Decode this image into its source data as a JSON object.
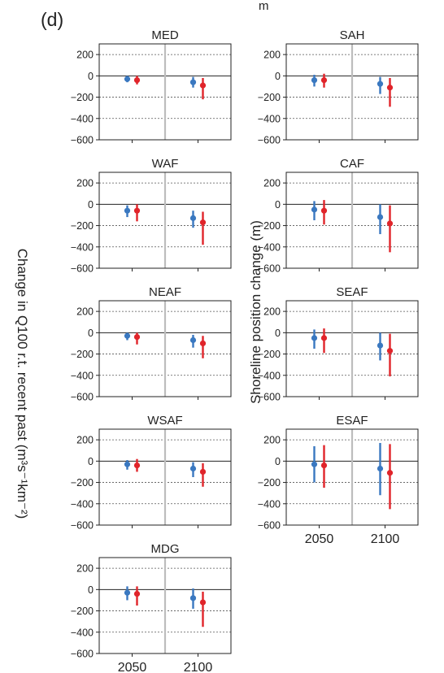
{
  "panel_label": "(d)",
  "top_fragment": "m",
  "outer_ylabel": "Change in Q100 r.t. recent past (m³s⁻¹km⁻²)",
  "colors": {
    "blue": "#3a78c0",
    "red": "#e0242a",
    "divider": "#bdbdbd",
    "grid": "#555555"
  },
  "chart_data": [
    {
      "type": "errorbar",
      "title": "MED",
      "ylabel": "",
      "ylim": [
        -600,
        300
      ],
      "yticks": [
        "200",
        "0",
        "−200",
        "−400",
        "−600"
      ],
      "categories": [
        "2050",
        "2100"
      ],
      "series": [
        {
          "values": [
            -30,
            -60
          ],
          "low": [
            -60,
            -110
          ],
          "high": [
            0,
            -10
          ]
        },
        {
          "values": [
            -40,
            -90
          ],
          "low": [
            -80,
            -220
          ],
          "high": [
            0,
            -20
          ]
        }
      ]
    },
    {
      "type": "errorbar",
      "title": "SAH",
      "ylabel": "",
      "ylim": [
        -600,
        300
      ],
      "yticks": [
        "200",
        "0",
        "−200",
        "−400",
        "−600"
      ],
      "categories": [
        "2050",
        "2100"
      ],
      "series": [
        {
          "values": [
            -40,
            -75
          ],
          "low": [
            -100,
            -170
          ],
          "high": [
            10,
            -10
          ]
        },
        {
          "values": [
            -40,
            -110
          ],
          "low": [
            -110,
            -290
          ],
          "high": [
            20,
            -20
          ]
        }
      ]
    },
    {
      "type": "errorbar",
      "title": "WAF",
      "ylabel": "",
      "ylim": [
        -600,
        300
      ],
      "yticks": [
        "200",
        "0",
        "−200",
        "−400",
        "−600"
      ],
      "categories": [
        "2050",
        "2100"
      ],
      "series": [
        {
          "values": [
            -60,
            -130
          ],
          "low": [
            -120,
            -220
          ],
          "high": [
            -10,
            -60
          ]
        },
        {
          "values": [
            -60,
            -170
          ],
          "low": [
            -160,
            -380
          ],
          "high": [
            0,
            -70
          ]
        }
      ]
    },
    {
      "type": "errorbar",
      "title": "CAF",
      "ylabel": "Shoreline position change (m)",
      "ylim": [
        -600,
        300
      ],
      "yticks": [
        "200",
        "0",
        "−200",
        "−400",
        "−600"
      ],
      "categories": [
        "2050",
        "2100"
      ],
      "series": [
        {
          "values": [
            -50,
            -120
          ],
          "low": [
            -150,
            -280
          ],
          "high": [
            30,
            0
          ]
        },
        {
          "values": [
            -60,
            -180
          ],
          "low": [
            -190,
            -450
          ],
          "high": [
            40,
            -10
          ]
        }
      ]
    },
    {
      "type": "errorbar",
      "title": "NEAF",
      "ylabel": "Shoreline position change (m)",
      "ylim": [
        -600,
        300
      ],
      "yticks": [
        "200",
        "0",
        "−200",
        "−400",
        "−600"
      ],
      "categories": [
        "2050",
        "2100"
      ],
      "series": [
        {
          "values": [
            -30,
            -70
          ],
          "low": [
            -70,
            -140
          ],
          "high": [
            0,
            -20
          ]
        },
        {
          "values": [
            -40,
            -100
          ],
          "low": [
            -110,
            -240
          ],
          "high": [
            0,
            -30
          ]
        }
      ]
    },
    {
      "type": "errorbar",
      "title": "SEAF",
      "ylabel": "",
      "ylim": [
        -600,
        300
      ],
      "yticks": [
        "200",
        "0",
        "−200",
        "−400",
        "−600"
      ],
      "categories": [
        "2050",
        "2100"
      ],
      "series": [
        {
          "values": [
            -50,
            -120
          ],
          "low": [
            -150,
            -260
          ],
          "high": [
            30,
            0
          ]
        },
        {
          "values": [
            -50,
            -170
          ],
          "low": [
            -190,
            -410
          ],
          "high": [
            40,
            -10
          ]
        }
      ]
    },
    {
      "type": "errorbar",
      "title": "WSAF",
      "ylabel": "",
      "ylim": [
        -600,
        300
      ],
      "yticks": [
        "200",
        "0",
        "−200",
        "−400",
        "−600"
      ],
      "categories": [
        "2050",
        "2100"
      ],
      "series": [
        {
          "values": [
            -30,
            -70
          ],
          "low": [
            -80,
            -150
          ],
          "high": [
            10,
            -10
          ]
        },
        {
          "values": [
            -40,
            -100
          ],
          "low": [
            -100,
            -240
          ],
          "high": [
            20,
            -20
          ]
        }
      ]
    },
    {
      "type": "errorbar",
      "title": "ESAF",
      "ylabel": "",
      "ylim": [
        -600,
        300
      ],
      "yticks": [
        "200",
        "0",
        "−200",
        "−400",
        "−600"
      ],
      "categories": [
        "2050",
        "2100"
      ],
      "series": [
        {
          "values": [
            -30,
            -70
          ],
          "low": [
            -200,
            -320
          ],
          "high": [
            140,
            170
          ]
        },
        {
          "values": [
            -40,
            -110
          ],
          "low": [
            -250,
            -450
          ],
          "high": [
            150,
            160
          ]
        }
      ]
    },
    {
      "type": "errorbar",
      "title": "MDG",
      "ylabel": "",
      "ylim": [
        -600,
        300
      ],
      "yticks": [
        "200",
        "0",
        "−200",
        "−400",
        "−600"
      ],
      "categories": [
        "2050",
        "2100"
      ],
      "series": [
        {
          "values": [
            -30,
            -80
          ],
          "low": [
            -100,
            -180
          ],
          "high": [
            30,
            10
          ]
        },
        {
          "values": [
            -40,
            -120
          ],
          "low": [
            -150,
            -350
          ],
          "high": [
            30,
            -20
          ]
        }
      ]
    }
  ]
}
